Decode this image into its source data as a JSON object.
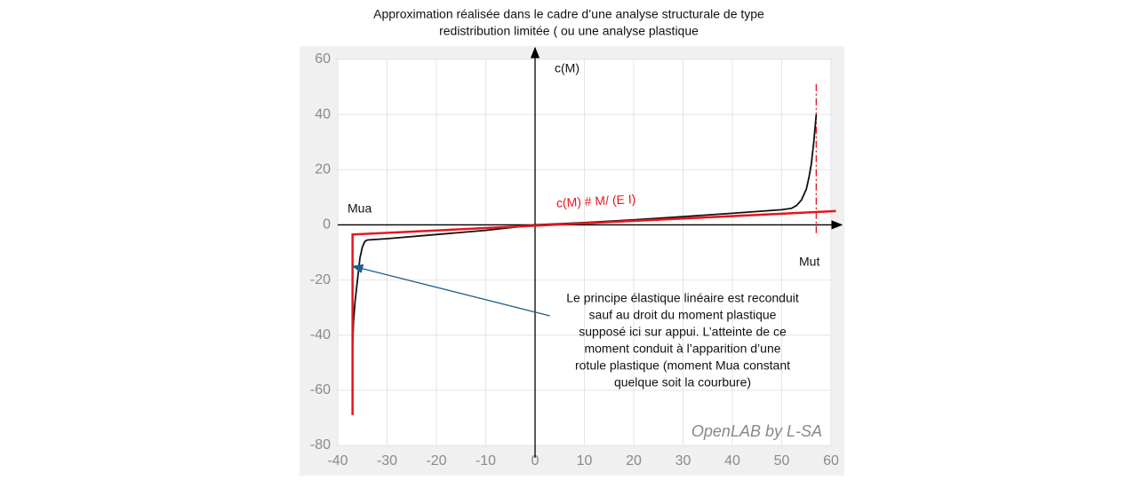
{
  "chart_data": {
    "type": "line",
    "title_lines": [
      "Approximation réalisée dans le cadre d’une analyse structurale de type",
      "redistribution limitée ( ou une analyse plastique"
    ],
    "y_axis_label": "c(M)",
    "left_label": "Mua",
    "right_label": "Mut",
    "watermark": "OpenLAB by L-SA",
    "annotation_lines": [
      "Le principe élastique linéaire est reconduit",
      "sauf au droit du moment plastique",
      "supposé ici sur appui. L’atteinte de ce",
      "moment conduit à l’apparition d’une",
      "rotule plastique (moment Mua constant",
      "quelque soit la courbure)"
    ],
    "arrow": {
      "x": [
        3,
        -37
      ],
      "y": [
        -33,
        -15
      ],
      "color": "#1f5f8b"
    },
    "series": [
      {
        "color": "#111111",
        "x": [
          -37,
          -37,
          -36.8,
          -36.5,
          -36,
          -35.5,
          -35,
          -34.5,
          -34,
          -30,
          -20,
          -10,
          0,
          10,
          20,
          30,
          40,
          50,
          52,
          53,
          54,
          55,
          55.5,
          56,
          56.5,
          57
        ],
        "values": [
          -63,
          -45,
          -35,
          -28,
          -20,
          -12,
          -8,
          -6,
          -5.5,
          -5,
          -3.5,
          -2,
          0,
          0.8,
          1.8,
          3,
          4.2,
          5.5,
          6,
          7,
          9,
          13,
          17,
          22,
          30,
          40
        ]
      },
      {
        "name": "c(M) # M/ (E I)",
        "color": "#e8141b",
        "x": [
          -37,
          -37,
          61
        ],
        "values": [
          -69,
          -3.5,
          5
        ]
      }
    ],
    "reference_lines": [
      {
        "x": 57,
        "y": [
          -3,
          52
        ],
        "color": "#e8141b"
      }
    ],
    "xlim": [
      -40,
      60
    ],
    "ylim": [
      -80,
      60
    ],
    "xticks": [
      -40,
      -30,
      -20,
      -10,
      0,
      10,
      20,
      30,
      40,
      50,
      60
    ],
    "yticks": [
      -80,
      -60,
      -40,
      -20,
      0,
      20,
      40,
      60
    ],
    "grid": true
  }
}
